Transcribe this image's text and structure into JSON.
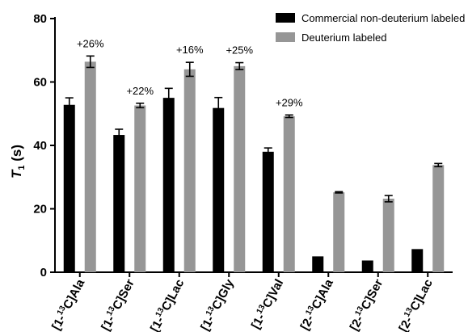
{
  "chart_data": {
    "type": "bar",
    "categories": [
      {
        "pre": "[1-",
        "sup": "13",
        "post": "C]Ala"
      },
      {
        "pre": "[1-",
        "sup": "13",
        "post": "C]Ser"
      },
      {
        "pre": "[1-",
        "sup": "13",
        "post": "C]Lac"
      },
      {
        "pre": "[1-",
        "sup": "13",
        "post": "C]Gly"
      },
      {
        "pre": "[1-",
        "sup": "13",
        "post": "C]Val"
      },
      {
        "pre": "[2-",
        "sup": "13",
        "post": "C]Ala"
      },
      {
        "pre": "[2-",
        "sup": "13",
        "post": "C]Ser"
      },
      {
        "pre": "[2-",
        "sup": "13",
        "post": "C]Lac"
      }
    ],
    "series": [
      {
        "name": "Commercial non-deuterium labeled",
        "color": "#000000",
        "values": [
          52.8,
          43.3,
          55.0,
          51.8,
          38.0,
          5.0,
          3.7,
          7.3
        ],
        "errors": [
          2.2,
          1.8,
          3.0,
          3.3,
          1.2,
          0,
          0,
          0
        ]
      },
      {
        "name": "Deuterium labeled",
        "color": "#969696",
        "values": [
          66.4,
          52.6,
          64.0,
          65.0,
          49.2,
          25.2,
          23.2,
          33.8
        ],
        "errors": [
          1.8,
          0.7,
          2.2,
          1.1,
          0.4,
          0.2,
          1.0,
          0.5
        ]
      }
    ],
    "annotations": [
      "+26%",
      "+22%",
      "+16%",
      "+25%",
      "+29%",
      "",
      "",
      ""
    ],
    "ylabel": {
      "main": "T",
      "sub": "1",
      "unit": " (s)"
    },
    "ylim": [
      0,
      80
    ],
    "yticks": [
      "0",
      "20",
      "40",
      "60",
      "80"
    ],
    "legend_position": "top-right",
    "grid": false
  }
}
